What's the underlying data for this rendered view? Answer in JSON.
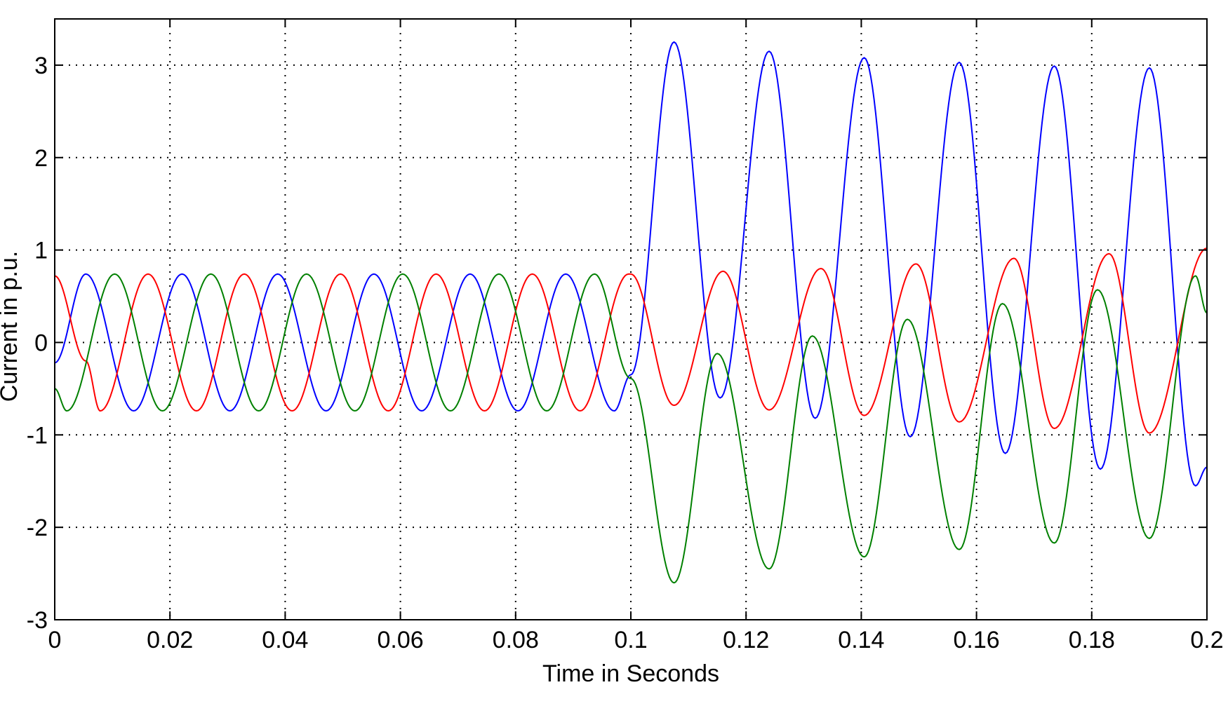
{
  "chart_data": {
    "type": "line",
    "title": "",
    "xlabel": "Time in Seconds",
    "ylabel": "Current in p.u.",
    "xlim": [
      0,
      0.2
    ],
    "ylim": [
      -3,
      3.5
    ],
    "x_ticks": [
      0,
      0.02,
      0.04,
      0.06,
      0.08,
      0.1,
      0.12,
      0.14,
      0.16,
      0.18,
      0.2
    ],
    "x_tick_labels": [
      "0",
      "0.02",
      "0.04",
      "0.06",
      "0.08",
      "0.1",
      "0.12",
      "0.14",
      "0.16",
      "0.18",
      "0.2"
    ],
    "y_ticks": [
      -3,
      -2,
      -1,
      0,
      1,
      2,
      3
    ],
    "y_tick_labels": [
      "-3",
      "-2",
      "-1",
      "0",
      "1",
      "2",
      "3"
    ],
    "grid": true,
    "legend": "none",
    "frequency_hz": 60,
    "fault_time": 0.1,
    "series": [
      {
        "color": "#0000ff",
        "values": [
          [
            0.0,
            -0.22
          ],
          [
            0.0054,
            0.74
          ],
          [
            0.0137,
            -0.74
          ],
          [
            0.0221,
            0.74
          ],
          [
            0.0304,
            -0.74
          ],
          [
            0.0387,
            0.74
          ],
          [
            0.0471,
            -0.74
          ],
          [
            0.0554,
            0.74
          ],
          [
            0.0637,
            -0.74
          ],
          [
            0.0721,
            0.74
          ],
          [
            0.0804,
            -0.74
          ],
          [
            0.0887,
            0.74
          ],
          [
            0.0971,
            -0.74
          ],
          [
            0.1,
            -0.35
          ],
          [
            0.1075,
            3.25
          ],
          [
            0.1155,
            -0.6
          ],
          [
            0.124,
            3.15
          ],
          [
            0.132,
            -0.82
          ],
          [
            0.1405,
            3.08
          ],
          [
            0.1485,
            -1.02
          ],
          [
            0.157,
            3.03
          ],
          [
            0.165,
            -1.2
          ],
          [
            0.1735,
            2.99
          ],
          [
            0.1815,
            -1.37
          ],
          [
            0.19,
            2.97
          ],
          [
            0.198,
            -1.55
          ],
          [
            0.2,
            -1.35
          ]
        ]
      },
      {
        "color": "#ff0000",
        "values": [
          [
            0.0,
            0.72
          ],
          [
            0.0054,
            -0.2
          ],
          [
            0.0079,
            -0.74
          ],
          [
            0.0162,
            0.74
          ],
          [
            0.0246,
            -0.74
          ],
          [
            0.0329,
            0.74
          ],
          [
            0.0412,
            -0.74
          ],
          [
            0.0496,
            0.74
          ],
          [
            0.0579,
            -0.74
          ],
          [
            0.0662,
            0.74
          ],
          [
            0.0746,
            -0.74
          ],
          [
            0.0829,
            0.74
          ],
          [
            0.0912,
            -0.74
          ],
          [
            0.0996,
            0.74
          ],
          [
            0.1,
            0.74
          ],
          [
            0.1075,
            -0.68
          ],
          [
            0.116,
            0.77
          ],
          [
            0.124,
            -0.73
          ],
          [
            0.133,
            0.8
          ],
          [
            0.1405,
            -0.79
          ],
          [
            0.1495,
            0.85
          ],
          [
            0.157,
            -0.86
          ],
          [
            0.1665,
            0.91
          ],
          [
            0.1735,
            -0.93
          ],
          [
            0.183,
            0.96
          ],
          [
            0.19,
            -0.98
          ],
          [
            0.2,
            1.02
          ]
        ]
      },
      {
        "color": "#008000",
        "values": [
          [
            0.0,
            -0.5
          ],
          [
            0.0021,
            -0.74
          ],
          [
            0.0104,
            0.74
          ],
          [
            0.0187,
            -0.74
          ],
          [
            0.0271,
            0.74
          ],
          [
            0.0354,
            -0.74
          ],
          [
            0.0437,
            0.74
          ],
          [
            0.0521,
            -0.74
          ],
          [
            0.0604,
            0.74
          ],
          [
            0.0687,
            -0.74
          ],
          [
            0.0771,
            0.74
          ],
          [
            0.0854,
            -0.74
          ],
          [
            0.0937,
            0.74
          ],
          [
            0.1,
            -0.39
          ],
          [
            0.1075,
            -2.6
          ],
          [
            0.115,
            -0.12
          ],
          [
            0.124,
            -2.45
          ],
          [
            0.1315,
            0.07
          ],
          [
            0.1405,
            -2.32
          ],
          [
            0.148,
            0.25
          ],
          [
            0.157,
            -2.24
          ],
          [
            0.1645,
            0.42
          ],
          [
            0.1735,
            -2.17
          ],
          [
            0.181,
            0.57
          ],
          [
            0.19,
            -2.12
          ],
          [
            0.198,
            0.72
          ],
          [
            0.2,
            0.32
          ]
        ]
      }
    ]
  }
}
